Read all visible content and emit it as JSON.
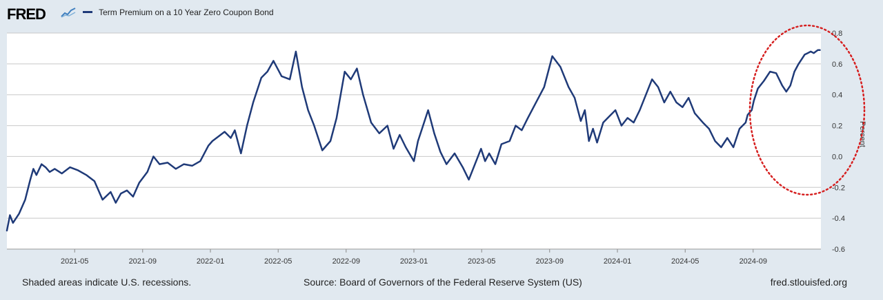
{
  "branding": {
    "logo_text": "FRED",
    "logo_icon": "trend-line-icon"
  },
  "legend": {
    "series_label": "Term Premium on a 10 Year Zero Coupon Bond"
  },
  "chart_data": {
    "type": "line",
    "title": "Term Premium on a 10 Year Zero Coupon Bond",
    "ylabel": "Percent",
    "ylim": [
      -0.6,
      0.8
    ],
    "yticks": [
      -0.6,
      -0.4,
      -0.2,
      0.0,
      0.2,
      0.4,
      0.6,
      0.8
    ],
    "ytick_labels": [
      "-0.6",
      "-0.4",
      "-0.2",
      "0.0",
      "0.2",
      "0.4",
      "0.6",
      "0.8"
    ],
    "xlim": [
      2021.0,
      2025.0
    ],
    "xticks": [
      2021.333,
      2021.667,
      2022.0,
      2022.333,
      2022.667,
      2023.0,
      2023.333,
      2023.667,
      2024.0,
      2024.333,
      2024.667
    ],
    "xtick_labels": [
      "2021-05",
      "2021-09",
      "2022-01",
      "2022-05",
      "2022-09",
      "2023-01",
      "2023-05",
      "2023-09",
      "2024-01",
      "2024-05",
      "2024-09"
    ],
    "grid": true,
    "series": [
      {
        "name": "Term Premium on a 10 Year Zero Coupon Bond",
        "color": "#1f3a78",
        "x": [
          2021.0,
          2021.015,
          2021.03,
          2021.06,
          2021.09,
          2021.115,
          2021.13,
          2021.145,
          2021.17,
          2021.19,
          2021.21,
          2021.235,
          2021.27,
          2021.31,
          2021.35,
          2021.39,
          2021.43,
          2021.47,
          2021.51,
          2021.535,
          2021.56,
          2021.59,
          2021.62,
          2021.65,
          2021.69,
          2021.72,
          2021.75,
          2021.79,
          2021.83,
          2021.87,
          2021.91,
          2021.95,
          2021.99,
          2022.01,
          2022.04,
          2022.07,
          2022.1,
          2022.12,
          2022.15,
          2022.18,
          2022.21,
          2022.25,
          2022.28,
          2022.31,
          2022.35,
          2022.39,
          2022.42,
          2022.45,
          2022.48,
          2022.51,
          2022.55,
          2022.59,
          2022.62,
          2022.64,
          2022.66,
          2022.69,
          2022.72,
          2022.75,
          2022.79,
          2022.83,
          2022.87,
          2022.9,
          2022.93,
          2022.96,
          2023.0,
          2023.02,
          2023.04,
          2023.07,
          2023.1,
          2023.13,
          2023.16,
          2023.2,
          2023.24,
          2023.27,
          2023.3,
          2023.33,
          2023.35,
          2023.37,
          2023.4,
          2023.43,
          2023.47,
          2023.5,
          2023.53,
          2023.56,
          2023.6,
          2023.64,
          2023.68,
          2023.72,
          2023.76,
          2023.79,
          2023.82,
          2023.84,
          2023.86,
          2023.88,
          2023.9,
          2023.93,
          2023.96,
          2023.99,
          2024.02,
          2024.05,
          2024.08,
          2024.11,
          2024.14,
          2024.17,
          2024.2,
          2024.23,
          2024.26,
          2024.29,
          2024.32,
          2024.35,
          2024.38,
          2024.42,
          2024.45,
          2024.48,
          2024.51,
          2024.54,
          2024.57,
          2024.6,
          2024.63,
          2024.64,
          2024.66,
          2024.67,
          2024.69,
          2024.72,
          2024.75,
          2024.78,
          2024.81,
          2024.83,
          2024.85,
          2024.87,
          2024.89,
          2024.91,
          2024.92,
          2024.935,
          2024.95,
          2024.965,
          2024.975,
          2024.985,
          2024.995
        ],
        "y": [
          -0.48,
          -0.38,
          -0.43,
          -0.37,
          -0.28,
          -0.15,
          -0.08,
          -0.12,
          -0.05,
          -0.07,
          -0.1,
          -0.08,
          -0.11,
          -0.07,
          -0.09,
          -0.12,
          -0.16,
          -0.28,
          -0.23,
          -0.3,
          -0.24,
          -0.22,
          -0.26,
          -0.17,
          -0.1,
          0.0,
          -0.05,
          -0.04,
          -0.08,
          -0.05,
          -0.06,
          -0.03,
          0.07,
          0.1,
          0.13,
          0.16,
          0.12,
          0.17,
          0.02,
          0.2,
          0.35,
          0.51,
          0.55,
          0.62,
          0.52,
          0.5,
          0.68,
          0.45,
          0.3,
          0.2,
          0.04,
          0.1,
          0.25,
          0.4,
          0.55,
          0.5,
          0.57,
          0.4,
          0.22,
          0.15,
          0.2,
          0.05,
          0.14,
          0.06,
          -0.03,
          0.1,
          0.18,
          0.3,
          0.15,
          0.03,
          -0.05,
          0.02,
          -0.07,
          -0.15,
          -0.05,
          0.05,
          -0.03,
          0.02,
          -0.05,
          0.08,
          0.1,
          0.2,
          0.17,
          0.25,
          0.35,
          0.45,
          0.65,
          0.58,
          0.45,
          0.38,
          0.23,
          0.3,
          0.1,
          0.18,
          0.09,
          0.22,
          0.26,
          0.3,
          0.2,
          0.25,
          0.22,
          0.3,
          0.4,
          0.5,
          0.45,
          0.35,
          0.42,
          0.35,
          0.32,
          0.38,
          0.28,
          0.22,
          0.18,
          0.1,
          0.06,
          0.12,
          0.06,
          0.18,
          0.22,
          0.27,
          0.3,
          0.36,
          0.44,
          0.49,
          0.55,
          0.54,
          0.46,
          0.42,
          0.46,
          0.55,
          0.6,
          0.64,
          0.66,
          0.67,
          0.68,
          0.67,
          0.68,
          0.69,
          0.69
        ]
      }
    ],
    "annotation": {
      "type": "ellipse",
      "style": "dotted",
      "color": "#d62020"
    }
  },
  "footer": {
    "recession_note": "Shaded areas indicate U.S. recessions.",
    "source": "Source: Board of Governors of the Federal Reserve System (US)",
    "site": "fred.stlouisfed.org"
  }
}
